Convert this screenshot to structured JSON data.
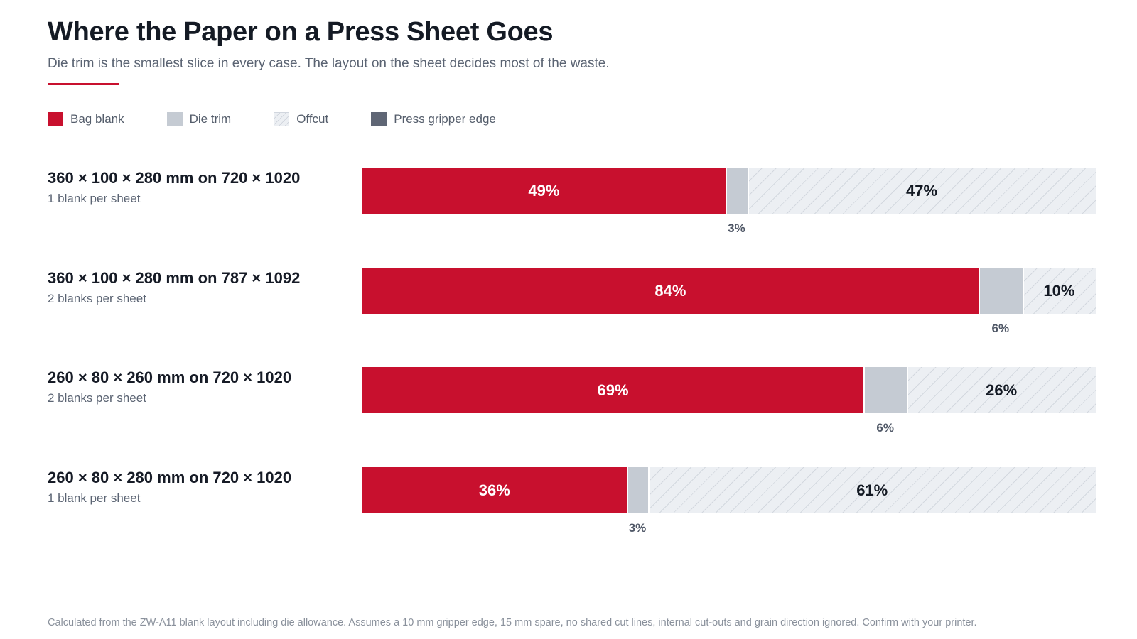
{
  "title": "Where the Paper on a Press Sheet Goes",
  "subtitle": "Die trim is the smallest slice in every case. The layout on the sheet decides most of the waste.",
  "footnote": "Calculated from the ZW-A11 blank layout including die allowance. Assumes a 10 mm gripper edge, 15 mm spare, no shared cut lines, internal cut-outs and grain direction ignored. Confirm with your printer.",
  "colors": {
    "accent": "#c8102e",
    "bag_blank": "#c8102e",
    "die_trim": "#c5cbd3",
    "offcut": "#eceff3",
    "press_gripper_edge": "#5f6675"
  },
  "legend": [
    {
      "key": "bag_blank",
      "label": "Bag blank"
    },
    {
      "key": "die_trim",
      "label": "Die trim"
    },
    {
      "key": "offcut",
      "label": "Offcut"
    },
    {
      "key": "press_gripper_edge",
      "label": "Press gripper edge"
    }
  ],
  "chart_data": {
    "type": "bar",
    "orientation": "horizontal",
    "stacked": true,
    "unit": "%",
    "categories": [
      "360 × 100 × 280 mm on 720 × 1020",
      "360 × 100 × 280 mm on 787 × 1092",
      "260 × 80 × 260 mm on 720 × 1020",
      "260 × 80 × 280 mm on 720 × 1020"
    ],
    "category_subtitles": [
      "1 blank per sheet",
      "2 blanks per sheet",
      "2 blanks per sheet",
      "1 blank per sheet"
    ],
    "series": [
      {
        "name": "Bag blank",
        "values": [
          49,
          84,
          69,
          36
        ]
      },
      {
        "name": "Die trim",
        "values": [
          3,
          6,
          6,
          3
        ]
      },
      {
        "name": "Offcut",
        "values": [
          47,
          10,
          26,
          61
        ]
      },
      {
        "name": "Press gripper edge",
        "values": [
          0,
          0,
          0,
          0
        ]
      }
    ],
    "legend_position": "top-left",
    "grid": false
  }
}
